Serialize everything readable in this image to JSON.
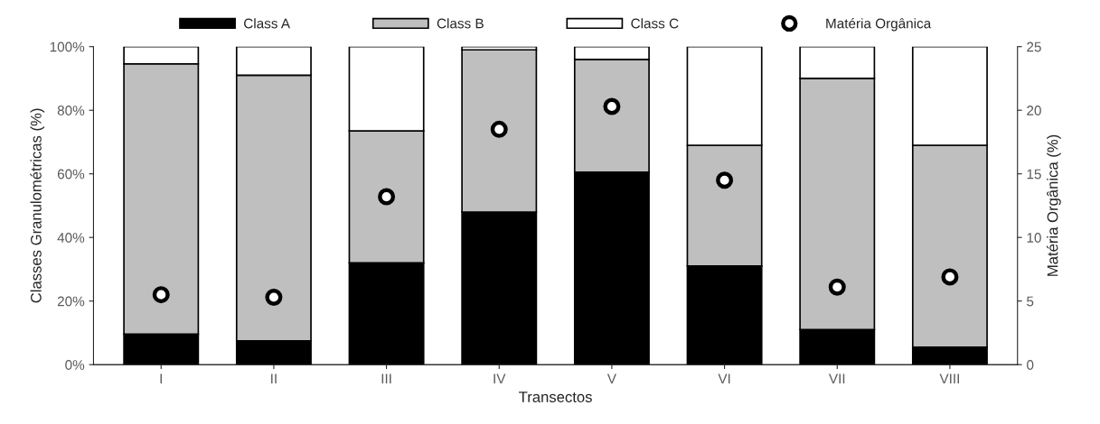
{
  "chart_data": {
    "type": "bar",
    "stacked": true,
    "xlabel": "Transectos",
    "ylabel": "Classes Granulométricas (%)",
    "y2label": "Matéria Orgânica (%)",
    "categories": [
      "I",
      "II",
      "III",
      "IV",
      "V",
      "VI",
      "VII",
      "VIII"
    ],
    "series": [
      {
        "name": "Class A",
        "color": "#000000",
        "values": [
          9.6,
          7.5,
          32,
          48,
          60.5,
          31,
          11,
          5.5
        ]
      },
      {
        "name": "Class B",
        "color": "#bfbfbf",
        "values": [
          85,
          83.5,
          41.5,
          51,
          35.5,
          38,
          79,
          63.5
        ]
      },
      {
        "name": "Class C",
        "color": "#ffffff",
        "values": [
          5.4,
          9,
          26.5,
          1,
          4,
          31,
          10,
          31
        ]
      },
      {
        "name": "Matéria Orgânica",
        "type": "scatter",
        "axis": "y2",
        "marker": "circle",
        "color": "#000000",
        "values": [
          5.5,
          5.3,
          13.2,
          18.5,
          20.3,
          14.5,
          6.1,
          6.9
        ]
      }
    ],
    "ylim": [
      0,
      100
    ],
    "yticks": [
      {
        "value": 0,
        "label": "0%"
      },
      {
        "value": 20,
        "label": "20%"
      },
      {
        "value": 40,
        "label": "40%"
      },
      {
        "value": 60,
        "label": "60%"
      },
      {
        "value": 80,
        "label": "80%"
      },
      {
        "value": 100,
        "label": "100%"
      }
    ],
    "y2lim": [
      0,
      25
    ],
    "y2ticks": [
      0,
      5,
      10,
      15,
      20,
      25
    ],
    "grid": false,
    "legend": "top"
  }
}
